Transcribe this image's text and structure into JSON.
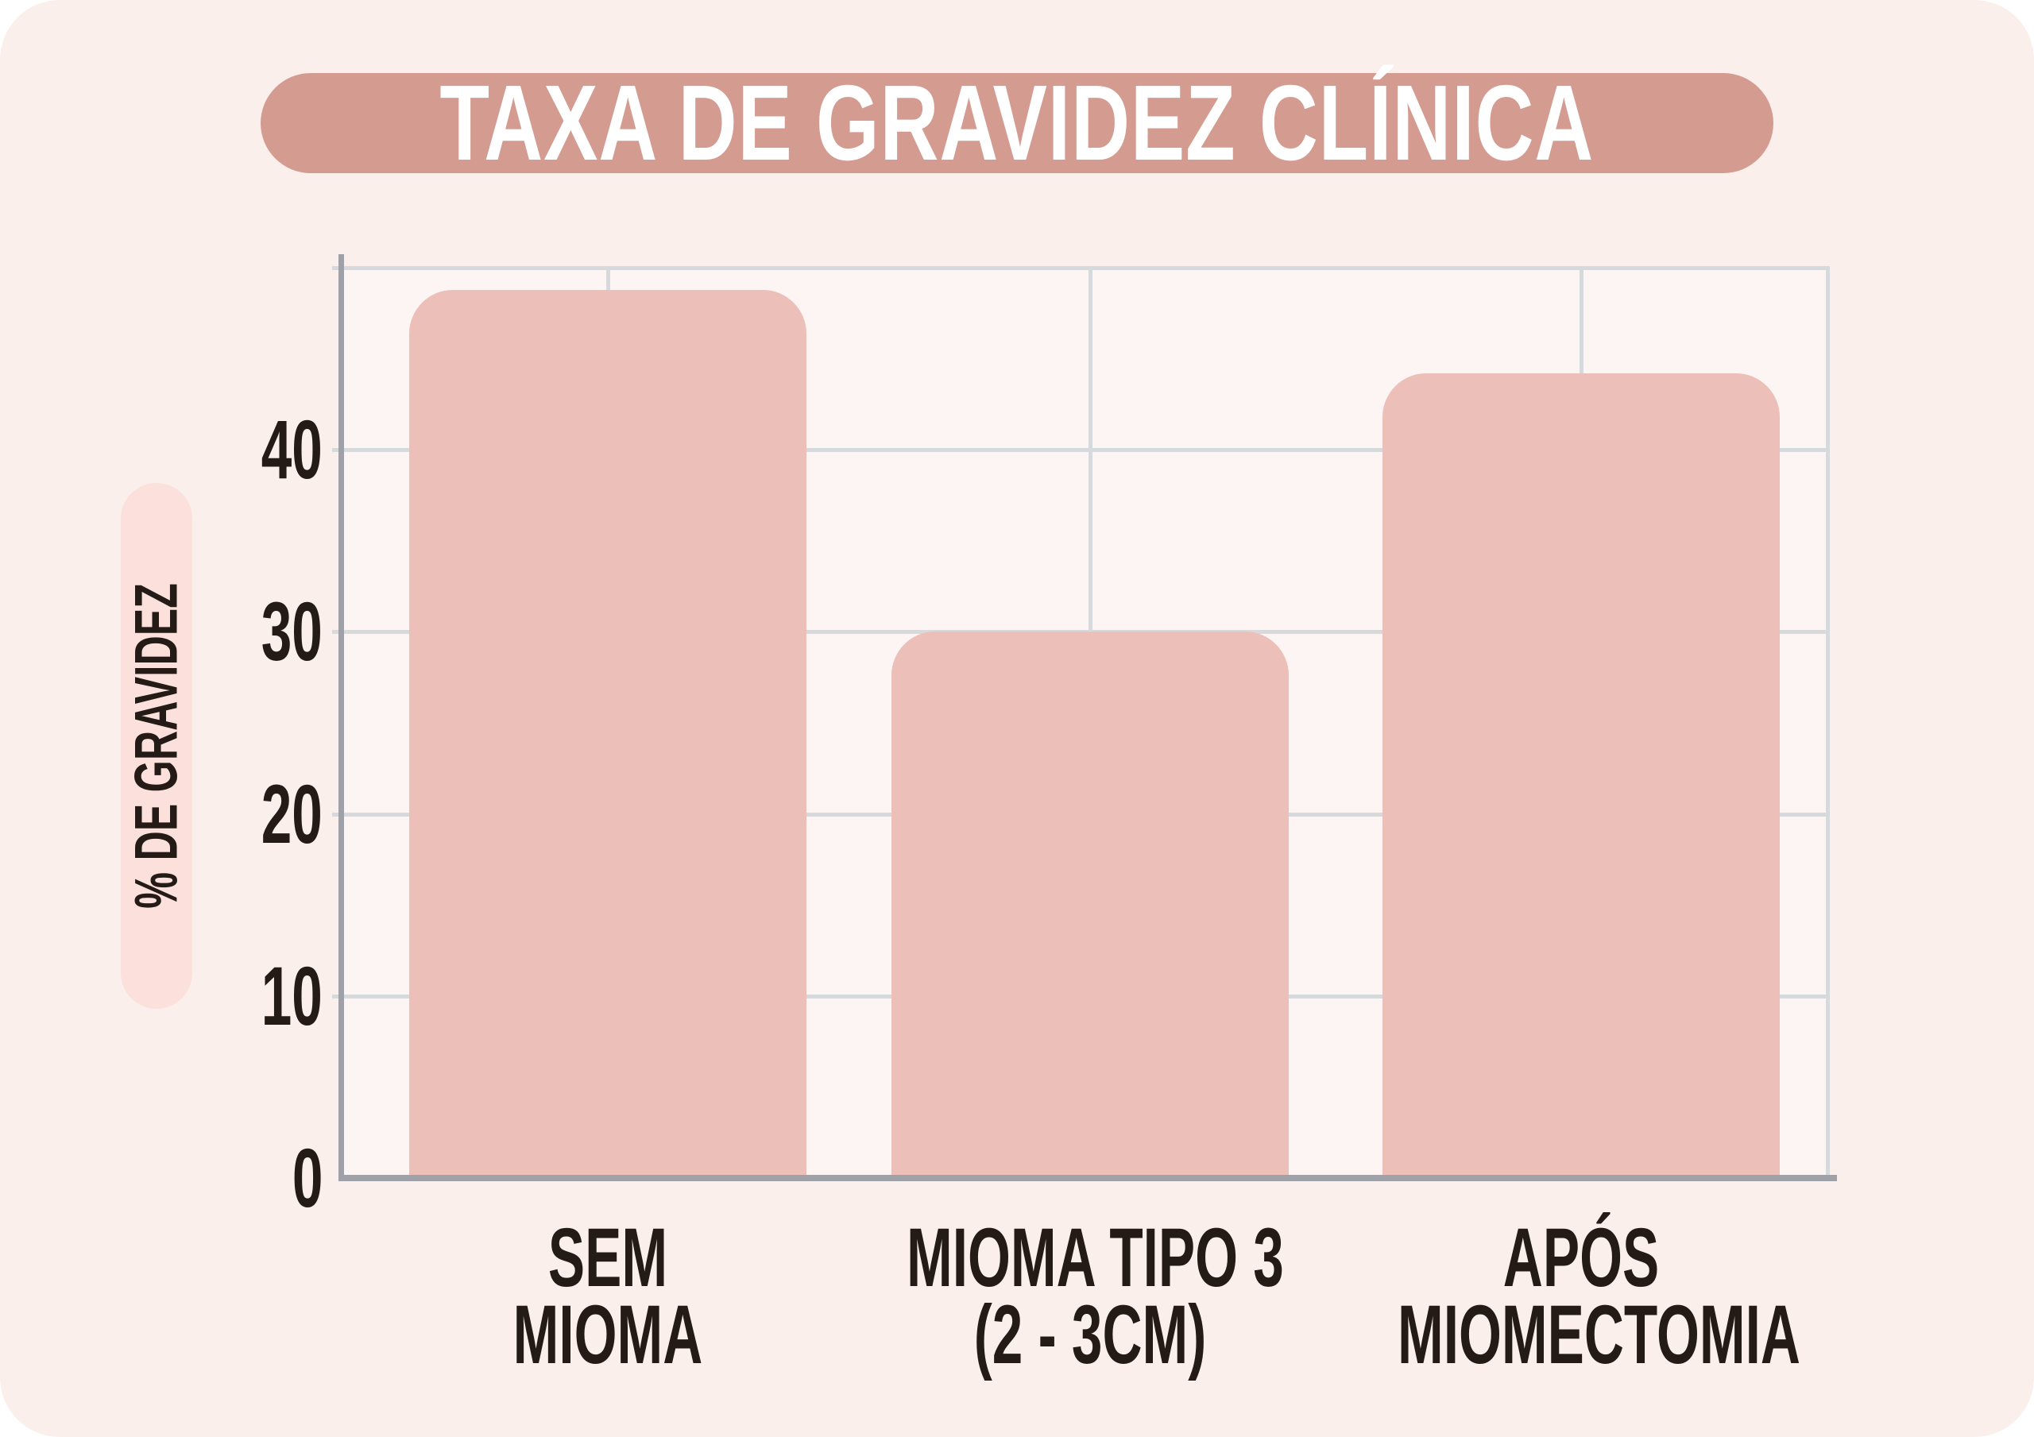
{
  "page": {
    "background_color": "#FFFFFF",
    "card_color": "#FBEFEC",
    "plot_background_color": "#FDF5F3"
  },
  "title": {
    "text": "TAXA DE GRAVIDEZ CLÍNICA",
    "pill_color": "#D49B90",
    "text_color": "#FFFFFF"
  },
  "y_axis_label": {
    "text": "% DE GRAVIDEZ",
    "pill_color": "#FBE0DC",
    "text_color": "#241B16"
  },
  "chart_data": {
    "type": "bar",
    "title": "TAXA DE GRAVIDEZ CLÍNICA",
    "ylabel": "% DE GRAVIDEZ",
    "xlabel": "",
    "categories": [
      [
        "SEM",
        "MIOMA"
      ],
      [
        "MIOMA TIPO 3",
        "(2 - 3CM)"
      ],
      [
        "APÓS",
        "MIOMECTOMIA"
      ]
    ],
    "values": [
      48.8,
      30,
      44.2
    ],
    "yticks": [
      0,
      10,
      20,
      30,
      40
    ],
    "ylim": [
      0,
      50
    ],
    "grid": true,
    "gridline_values": [
      10,
      20,
      30,
      40,
      50
    ],
    "legend": "none",
    "bar_color": "#ECBFB8",
    "gridline_color": "#D7DADD",
    "axis_color": "#9EA2A8",
    "tick_text_color": "#241B16"
  }
}
